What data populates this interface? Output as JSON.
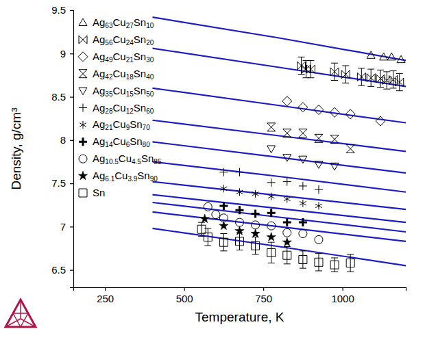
{
  "chart_data": {
    "type": "scatter",
    "x_label": "Temperature, K",
    "y_label": "Density, g/cm³",
    "xlim": [
      150,
      1200
    ],
    "ylim": [
      6.3,
      9.5
    ],
    "xticks": [
      250,
      500,
      750,
      1000
    ],
    "yticks": [
      6.5,
      7,
      7.5,
      8,
      8.5,
      9,
      9.5
    ],
    "grid": false,
    "legend": "upper left",
    "series": [
      {
        "name": "Ag63Cu27Sn10",
        "type": "scatter",
        "marker": "triangle",
        "color": "#000000",
        "x": [
          1090,
          1130,
          1155,
          1185
        ],
        "values": [
          8.98,
          8.96,
          8.96,
          8.93
        ]
      },
      {
        "name": "Ag56Cu24Sn20",
        "type": "scatter",
        "marker": "bowtie",
        "color": "#000000",
        "x": [
          870,
          885,
          900,
          975,
          1010,
          1060,
          1090,
          1120,
          1140,
          1160,
          1180
        ],
        "values": [
          8.86,
          8.82,
          8.82,
          8.79,
          8.76,
          8.73,
          8.72,
          8.71,
          8.69,
          8.7,
          8.67
        ],
        "error": [
          0.1,
          0.1,
          0.1,
          0.1,
          0.1,
          0.1,
          0.1,
          0.1,
          0.1,
          0.1,
          0.1
        ]
      },
      {
        "name": "Ag49Cu21Sn30",
        "type": "scatter",
        "marker": "diamond",
        "color": "#000000",
        "x": [
          825,
          875,
          925,
          975,
          1025,
          1120
        ],
        "values": [
          8.45,
          8.38,
          8.35,
          8.32,
          8.3,
          8.22
        ]
      },
      {
        "name": "Ag42Cu18Sn40",
        "type": "scatter",
        "marker": "hourglass",
        "color": "#000000",
        "x": [
          775,
          825,
          875,
          925,
          975,
          1025
        ],
        "values": [
          8.15,
          8.08,
          8.08,
          8.02,
          8.01,
          7.9
        ]
      },
      {
        "name": "Ag35Cu15Sn50",
        "type": "scatter",
        "marker": "triangle-down",
        "color": "#000000",
        "x": [
          775,
          825,
          875,
          925,
          975
        ],
        "values": [
          7.9,
          7.8,
          7.78,
          7.72,
          7.7
        ]
      },
      {
        "name": "Ag28Cu12Sn60",
        "type": "scatter",
        "marker": "plus",
        "color": "#000000",
        "x": [
          625,
          675,
          775,
          825,
          875,
          925
        ],
        "values": [
          7.63,
          7.63,
          7.51,
          7.52,
          7.47,
          7.43
        ]
      },
      {
        "name": "Ag21Cu9Sn70",
        "type": "scatter",
        "marker": "asterisk",
        "color": "#000000",
        "x": [
          625,
          675,
          725,
          775,
          825,
          875,
          925
        ],
        "values": [
          7.44,
          7.4,
          7.38,
          7.35,
          7.32,
          7.27,
          7.24
        ]
      },
      {
        "name": "Ag14Cu6Sn80",
        "type": "scatter",
        "marker": "plus-bold",
        "color": "#000000",
        "x": [
          625,
          675,
          725,
          775,
          825,
          875
        ],
        "values": [
          7.24,
          7.19,
          7.15,
          7.16,
          7.05,
          7.05
        ]
      },
      {
        "name": "Ag10.5Cu4.5Sn85",
        "type": "scatter",
        "marker": "circle",
        "color": "#000000",
        "x": [
          575,
          600,
          625,
          675,
          725,
          775,
          825,
          875,
          925
        ],
        "values": [
          7.23,
          7.14,
          7.1,
          7.05,
          7.02,
          7.01,
          6.93,
          6.92,
          6.85
        ]
      },
      {
        "name": "Ag6.1Cu3.9Sn90",
        "type": "scatter",
        "marker": "star",
        "color": "#000000",
        "x": [
          565,
          625,
          675,
          725,
          775,
          825
        ],
        "values": [
          7.09,
          7.01,
          6.95,
          6.92,
          6.88,
          6.82
        ]
      },
      {
        "name": "Sn",
        "type": "scatter",
        "marker": "square",
        "color": "#000000",
        "x": [
          555,
          575,
          625,
          675,
          725,
          775,
          825,
          875,
          925,
          975,
          1025
        ],
        "values": [
          6.97,
          6.88,
          6.82,
          6.83,
          6.78,
          6.7,
          6.67,
          6.62,
          6.59,
          6.56,
          6.58
        ],
        "error": [
          0.08,
          0.1,
          0.1,
          0.1,
          0.1,
          0.12,
          0.1,
          0.1,
          0.1,
          0.08,
          0.1
        ]
      },
      {
        "type": "line",
        "color": "#1c1cc4",
        "x": [
          400,
          800,
          1200
        ],
        "values": [
          9.42,
          9.18,
          8.92
        ]
      },
      {
        "type": "line",
        "color": "#1c1cc4",
        "x": [
          400,
          800,
          1200
        ],
        "values": [
          9.06,
          8.84,
          8.62
        ]
      },
      {
        "type": "line",
        "color": "#1c1cc4",
        "x": [
          400,
          800,
          1200
        ],
        "values": [
          8.6,
          8.4,
          8.2
        ]
      },
      {
        "type": "line",
        "color": "#1c1cc4",
        "x": [
          400,
          800,
          1200
        ],
        "values": [
          8.23,
          8.05,
          7.87
        ]
      },
      {
        "type": "line",
        "color": "#1c1cc4",
        "x": [
          400,
          800,
          1200
        ],
        "values": [
          7.98,
          7.8,
          7.62
        ]
      },
      {
        "type": "line",
        "color": "#1c1cc4",
        "x": [
          400,
          800,
          1200
        ],
        "values": [
          7.75,
          7.58,
          7.4
        ]
      },
      {
        "type": "line",
        "color": "#1c1cc4",
        "x": [
          400,
          800,
          1200
        ],
        "values": [
          7.52,
          7.36,
          7.2
        ]
      },
      {
        "type": "line",
        "color": "#1c1cc4",
        "x": [
          400,
          800,
          1200
        ],
        "values": [
          7.37,
          7.21,
          7.05
        ]
      },
      {
        "type": "line",
        "color": "#1c1cc4",
        "x": [
          400,
          800,
          1200
        ],
        "values": [
          7.28,
          7.11,
          6.94
        ]
      },
      {
        "type": "line",
        "color": "#1c1cc4",
        "x": [
          400,
          800,
          1200
        ],
        "values": [
          7.17,
          7.0,
          6.83
        ]
      },
      {
        "type": "line",
        "color": "#1c1cc4",
        "x": [
          400,
          800,
          1200
        ],
        "values": [
          6.98,
          6.77,
          6.55
        ]
      }
    ]
  }
}
